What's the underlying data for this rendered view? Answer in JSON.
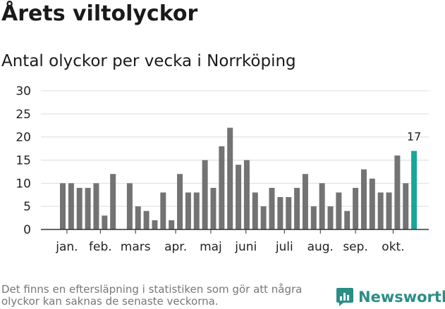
{
  "header": {
    "title": "Årets viltolyckor",
    "subtitle": "Antal olyckor per vecka i Norrköping"
  },
  "footer": {
    "note": "Det finns en eftersläpning i statistiken som gör att några olyckor kan saknas de senaste veckorna.",
    "brand": "Newsworthy",
    "brand_icon": "bar-chart-logo-icon"
  },
  "colors": {
    "bar": "#737373",
    "highlight": "#1aa59a",
    "grid": "#dddddd",
    "axis": "#333333",
    "brand": "#2a8e86"
  },
  "chart_data": {
    "type": "bar",
    "title": "Antal olyckor per vecka i Norrköping",
    "xlabel": "",
    "ylabel": "",
    "ylim": [
      0,
      30
    ],
    "yticks": [
      0,
      5,
      10,
      15,
      20,
      25,
      30
    ],
    "grid": true,
    "values": [
      10,
      10,
      9,
      9,
      10,
      3,
      12,
      0,
      10,
      5,
      4,
      2,
      8,
      2,
      12,
      8,
      8,
      15,
      9,
      18,
      22,
      14,
      15,
      8,
      5,
      9,
      7,
      7,
      9,
      12,
      5,
      10,
      5,
      8,
      4,
      9,
      13,
      11,
      8,
      8,
      16,
      10,
      17
    ],
    "highlight_index": 42,
    "highlight_label": "17",
    "month_labels": [
      {
        "label": "jan.",
        "at": 0.5
      },
      {
        "label": "feb.",
        "at": 4.5
      },
      {
        "label": "mars",
        "at": 8.7
      },
      {
        "label": "apr.",
        "at": 13.5
      },
      {
        "label": "maj",
        "at": 17.7
      },
      {
        "label": "juni",
        "at": 21.9
      },
      {
        "label": "juli",
        "at": 26.5
      },
      {
        "label": "aug.",
        "at": 30.8
      },
      {
        "label": "sep.",
        "at": 35.0
      },
      {
        "label": "okt.",
        "at": 39.5
      }
    ]
  }
}
